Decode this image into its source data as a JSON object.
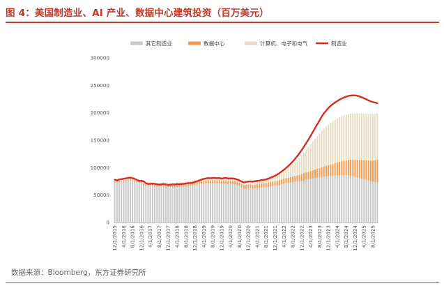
{
  "figure": {
    "title": "图 4：美国制造业、AI 产业、数据中心建筑投资（百万美元）",
    "source": "数据来源：Bloomberg，东方证券研究所"
  },
  "colors": {
    "accent": "#c0392b",
    "other_manufacturing": "#c8c8c8",
    "data_center": "#f39a4e",
    "computer_electronics": "#e8dcc4",
    "manufacturing_line": "#d62d20"
  },
  "chart_data": {
    "type": "bar",
    "stacked": true,
    "title": "",
    "xlabel": "",
    "ylabel": "",
    "ylim": [
      0,
      300000
    ],
    "yticks": [
      0,
      50000,
      100000,
      150000,
      200000,
      250000,
      300000
    ],
    "ytick_labels": [
      "0",
      "50000",
      "100000",
      "150000",
      "200000",
      "250000",
      "300000"
    ],
    "grid": false,
    "legend_position": "top",
    "x_start": "2015-12",
    "x_end": "2025-08",
    "frequency": "monthly",
    "xtick_labels": [
      "12/1/2015",
      "4/1/2016",
      "8/1/2016",
      "12/1/2016",
      "4/1/2017",
      "8/1/2017",
      "12/1/2017",
      "4/1/2018",
      "8/1/2018",
      "12/1/2018",
      "4/1/2019",
      "8/1/2019",
      "12/1/2019",
      "4/1/2020",
      "8/1/2020",
      "12/1/2020",
      "4/1/2021",
      "8/1/2021",
      "12/1/2021",
      "4/1/2022",
      "8/1/2022",
      "12/1/2022",
      "4/1/2023",
      "8/1/2023",
      "12/1/2023",
      "4/1/2024",
      "8/1/2024",
      "12/1/2024",
      "4/1/2025",
      "8/1/2025"
    ],
    "series": [
      {
        "name": "其它制造业",
        "kind": "bar",
        "color": "#c8c8c8",
        "values": [
          73000,
          73500,
          73800,
          74200,
          74800,
          75200,
          76000,
          76500,
          75800,
          74500,
          73200,
          72800,
          72000,
          68000,
          66800,
          67200,
          67600,
          66900,
          65800,
          65200,
          65600,
          65900,
          66500,
          65800,
          64500,
          64800,
          65100,
          64900,
          65600,
          65400,
          65800,
          65100,
          66200,
          66800,
          66500,
          67400,
          68600,
          69100,
          70200,
          71000,
          70800,
          71600,
          71800,
          71200,
          71600,
          71700,
          71500,
          71900,
          70400,
          70800,
          71000,
          69700,
          70200,
          69800,
          69600,
          67500,
          67000,
          64000,
          61500,
          61800,
          62200,
          62800,
          61500,
          61800,
          62600,
          63300,
          63800,
          64000,
          64400,
          65200,
          66000,
          66600,
          67400,
          67800,
          68600,
          69600,
          70800,
          71400,
          71900,
          72600,
          73200,
          74000,
          74600,
          75200,
          76000,
          76800,
          77800,
          78600,
          79500,
          80400,
          81200,
          81800,
          82600,
          83300,
          84000,
          84400,
          84800,
          85200,
          85600,
          85900,
          86200,
          86400,
          86600,
          86300,
          86000,
          85700,
          85200,
          84300,
          83300,
          82200,
          81000,
          79900,
          78800,
          77600,
          76500,
          75200,
          74200,
          73600,
          73200
        ]
      },
      {
        "name": "数据中心",
        "kind": "bar",
        "color": "#f39a4e",
        "values": [
          2000,
          2050,
          2100,
          2150,
          2200,
          2250,
          2300,
          2350,
          2400,
          2450,
          2500,
          2550,
          2600,
          2650,
          2700,
          2750,
          2800,
          2850,
          2900,
          2950,
          3000,
          3050,
          3100,
          3150,
          3200,
          3300,
          3400,
          3500,
          3600,
          3700,
          3800,
          3900,
          4000,
          4100,
          4200,
          4300,
          4400,
          4500,
          4600,
          4700,
          4800,
          4900,
          5000,
          5100,
          5200,
          5300,
          5400,
          5500,
          5600,
          5700,
          5800,
          5900,
          6000,
          6100,
          6200,
          6300,
          6400,
          6500,
          6600,
          6700,
          6800,
          6900,
          7000,
          7100,
          7200,
          7300,
          7400,
          7500,
          7600,
          7700,
          7800,
          7900,
          8000,
          8300,
          8600,
          8900,
          9200,
          9500,
          9800,
          10200,
          10600,
          11000,
          11400,
          11800,
          12300,
          12800,
          13300,
          13800,
          14300,
          14900,
          15500,
          16100,
          16700,
          17300,
          18000,
          18800,
          19700,
          20600,
          21500,
          22500,
          23500,
          24500,
          25500,
          26400,
          27300,
          28200,
          29100,
          30000,
          30900,
          31800,
          32700,
          33700,
          34700,
          35700,
          36700,
          37700,
          38800,
          40000,
          41200
        ]
      },
      {
        "name": "计算机、电子和电气",
        "kind": "bar",
        "color": "#e8dcc4",
        "values": [
          2000,
          2100,
          2200,
          2300,
          2400,
          2500,
          2600,
          2700,
          2800,
          2900,
          3000,
          3100,
          3200,
          3300,
          3400,
          3500,
          3600,
          3700,
          3800,
          3900,
          3900,
          4000,
          4000,
          4100,
          4100,
          4200,
          4200,
          4300,
          4300,
          4400,
          4400,
          4400,
          4500,
          4500,
          4500,
          4600,
          4600,
          4600,
          4700,
          4700,
          4700,
          4700,
          4800,
          4800,
          4800,
          4800,
          4800,
          4900,
          4900,
          4900,
          5000,
          5000,
          5000,
          5000,
          5000,
          5100,
          5100,
          5100,
          5100,
          5200,
          5200,
          5200,
          5300,
          5300,
          5400,
          5500,
          5700,
          6000,
          6500,
          7100,
          7800,
          8700,
          9600,
          10600,
          11800,
          13200,
          14700,
          16400,
          18300,
          20400,
          22700,
          25200,
          28000,
          31000,
          34400,
          38000,
          41600,
          45200,
          49000,
          52600,
          56200,
          59800,
          63200,
          66200,
          69000,
          71600,
          73900,
          75900,
          77500,
          78900,
          80100,
          81100,
          82000,
          82700,
          83300,
          83800,
          84300,
          84600,
          84800,
          85000,
          85200,
          85300,
          85300,
          85200,
          85100,
          85000,
          84800,
          84600,
          84500
        ]
      },
      {
        "name": "制造业",
        "kind": "line",
        "color": "#d62d20",
        "values": [
          78000,
          77000,
          78500,
          79000,
          79800,
          80500,
          81500,
          81800,
          81000,
          79500,
          77800,
          75500,
          76200,
          74800,
          71800,
          70200,
          70600,
          71000,
          70400,
          69700,
          69000,
          69600,
          70100,
          69400,
          68600,
          69000,
          69500,
          69400,
          70000,
          69800,
          70200,
          70500,
          71200,
          71800,
          72000,
          72600,
          73800,
          75200,
          76800,
          78200,
          79600,
          80400,
          81000,
          80800,
          81100,
          81200,
          80700,
          81300,
          80000,
          80900,
          81400,
          80100,
          80700,
          80300,
          79800,
          78400,
          76700,
          74800,
          73200,
          74000,
          74600,
          75100,
          74400,
          75300,
          75800,
          76400,
          77400,
          77800,
          78600,
          80000,
          81600,
          83400,
          85200,
          87400,
          90000,
          93000,
          96000,
          99500,
          103000,
          107000,
          111200,
          116000,
          121000,
          126400,
          132000,
          138200,
          144600,
          151000,
          158000,
          165000,
          172000,
          179000,
          186000,
          193000,
          199000,
          204000,
          208800,
          212600,
          215800,
          218800,
          221400,
          223800,
          226000,
          227800,
          229400,
          230600,
          231400,
          231800,
          231600,
          231000,
          229800,
          228200,
          226400,
          224600,
          222600,
          220800,
          219600,
          218600,
          217400
        ]
      }
    ]
  }
}
